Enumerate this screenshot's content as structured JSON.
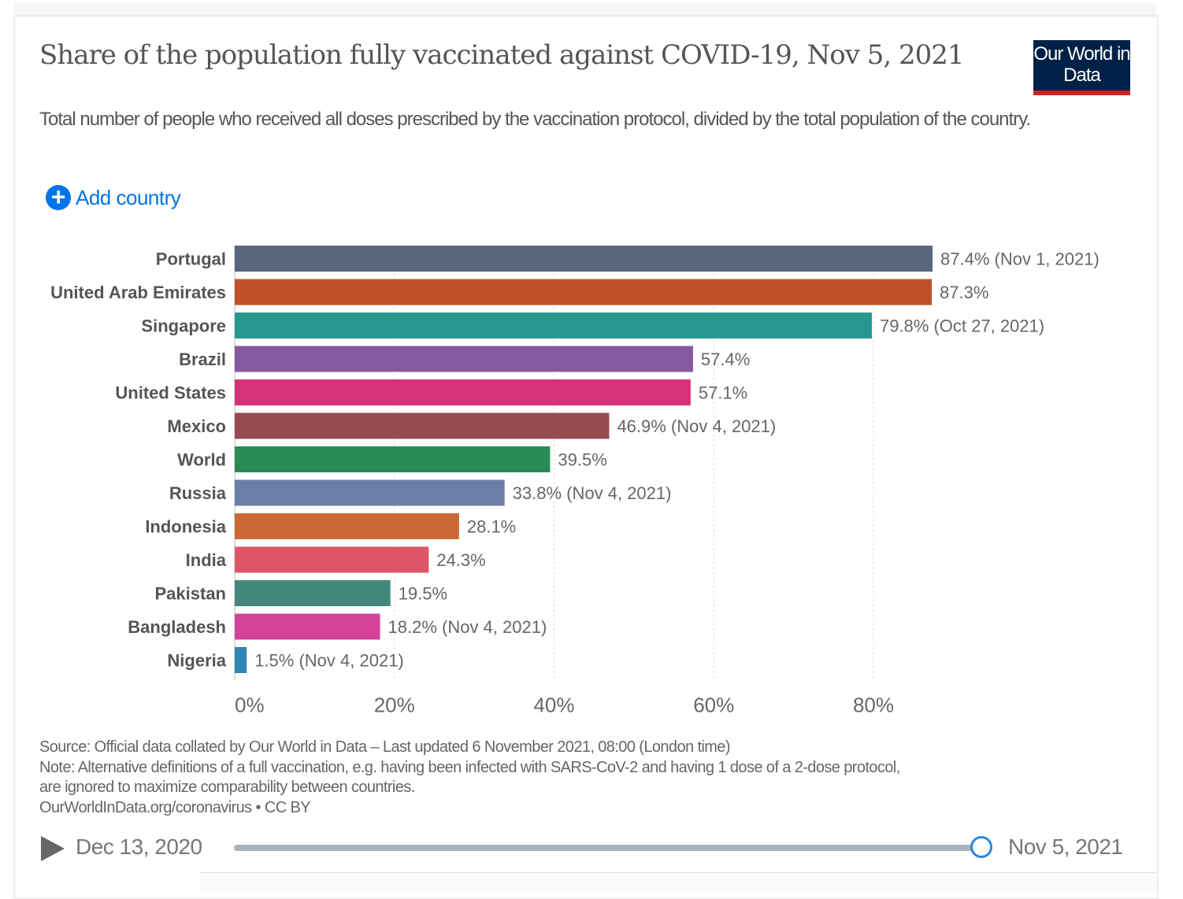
{
  "header": {
    "title": "Share of the population fully vaccinated against COVID-19, Nov 5, 2021",
    "subtitle": "Total number of people who received all doses prescribed by the vaccination protocol, divided by the total population of the country.",
    "logo": "Our World in Data",
    "add_country": "Add country"
  },
  "chart_data": {
    "type": "bar",
    "orientation": "horizontal",
    "categories": [
      "Portugal",
      "United Arab Emirates",
      "Singapore",
      "Brazil",
      "United States",
      "Mexico",
      "World",
      "Russia",
      "Indonesia",
      "India",
      "Pakistan",
      "Bangladesh",
      "Nigeria"
    ],
    "values": [
      87.4,
      87.3,
      79.8,
      57.4,
      57.1,
      46.9,
      39.5,
      33.8,
      28.1,
      24.3,
      19.5,
      18.2,
      1.5
    ],
    "data_labels": [
      "87.4% (Nov 1, 2021)",
      "87.3%",
      "79.8% (Oct 27, 2021)",
      "57.4%",
      "57.1%",
      "46.9% (Nov 4, 2021)",
      "39.5%",
      "33.8% (Nov 4, 2021)",
      "28.1%",
      "24.3%",
      "19.5%",
      "18.2% (Nov 4, 2021)",
      "1.5% (Nov 4, 2021)"
    ],
    "colors": [
      "#58667e",
      "#be5127",
      "#26988f",
      "#8558a0",
      "#d73178",
      "#964b51",
      "#2a8c55",
      "#6a7fa8",
      "#c96a35",
      "#de5668",
      "#44877d",
      "#d3439a",
      "#2e86b1"
    ],
    "xticks": [
      0,
      20,
      40,
      60,
      80
    ],
    "xtick_labels": [
      "0%",
      "20%",
      "40%",
      "60%",
      "80%"
    ],
    "xlim": [
      0,
      87.4
    ],
    "grid": true,
    "unit": "%"
  },
  "footer": {
    "source": "Source: Official data collated by Our World in Data – Last updated 6 November 2021, 08:00 (London time)",
    "note1": "Note: Alternative definitions of a full vaccination, e.g. having been infected with SARS-CoV-2 and having 1 dose of a 2-dose protocol,",
    "note2": "are ignored to maximize comparability between countries.",
    "license": "OurWorldInData.org/coronavirus • CC BY"
  },
  "timeline": {
    "start": "Dec 13, 2020",
    "end": "Nov 5, 2021",
    "position": 1.0
  }
}
